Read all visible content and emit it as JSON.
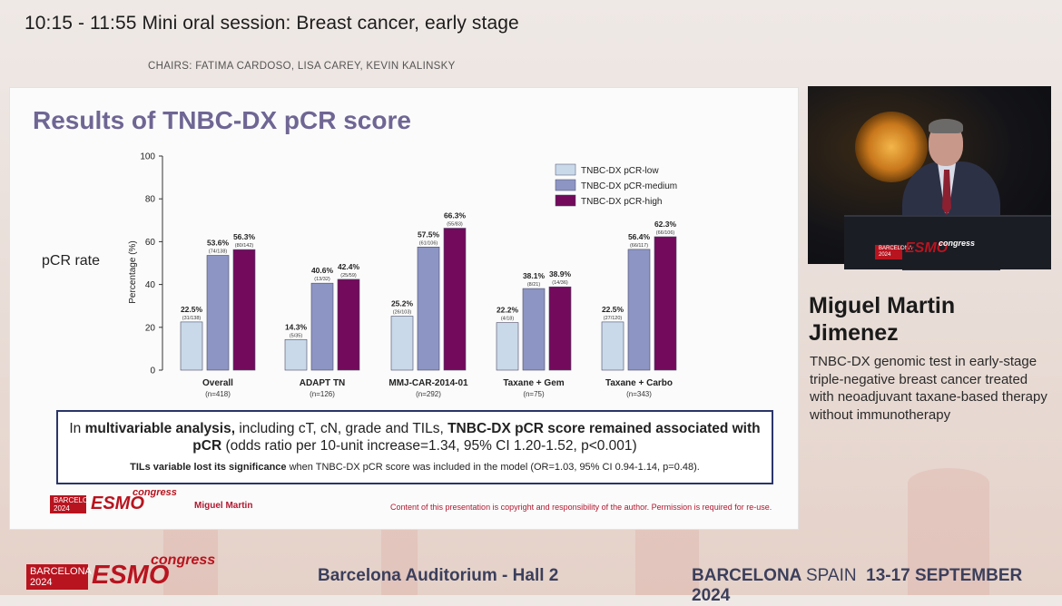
{
  "header": {
    "session_title": "10:15 - 11:55  Mini oral session: Breast cancer, early stage",
    "chairs": "CHAIRS: FATIMA CARDOSO, LISA CAREY, KEVIN KALINSKY"
  },
  "slide": {
    "title": "Results of TNBC-DX pCR score",
    "side_label": "pCR rate",
    "stat_box": {
      "line1_part1": "In ",
      "line1_bold1": "multivariable analysis,",
      "line1_part2": " including cT, cN, grade and TILs, ",
      "line1_bold2": "TNBC-DX pCR score remained associated with pCR",
      "line1_part3": " (odds ratio per 10-unit increase=1.34, 95% CI 1.20-1.52, p<0.001)",
      "line2_bold": "TILs variable lost its significance",
      "line2_rest": " when TNBC-DX pCR score was included in the model (OR=1.03, 95% CI 0.94-1.14, p=0.48)."
    },
    "logo_badge": "BARCELONA 2024",
    "logo_mark": "ESMO",
    "logo_congress": "congress",
    "author": "Miguel Martin",
    "copyright": "Content of this presentation is copyright and responsibility of the author. Permission is required for re-use."
  },
  "chart_data": {
    "type": "bar",
    "ylabel": "Percentage (%)",
    "ylim": [
      0,
      100
    ],
    "yticks": [
      "0",
      "20",
      "40",
      "60",
      "80",
      "100"
    ],
    "categories": [
      "Overall",
      "ADAPT TN",
      "MMJ-CAR-2014-01",
      "Taxane + Gem",
      "Taxane + Carbo"
    ],
    "category_n": [
      "(n=418)",
      "(n=126)",
      "(n=292)",
      "(n=75)",
      "(n=343)"
    ],
    "legend_position": "top-right",
    "series": [
      {
        "name": "TNBC-DX pCR-low",
        "color": "#c9d9ea",
        "values": [
          22.5,
          14.3,
          25.2,
          22.2,
          22.5
        ],
        "labels": [
          "22.5%",
          "14.3%",
          "25.2%",
          "22.2%",
          "22.5%"
        ],
        "fractions": [
          "(31/138)",
          "(5/35)",
          "(26/103)",
          "(4/18)",
          "(27/120)"
        ]
      },
      {
        "name": "TNBC-DX pCR-medium",
        "color": "#8d95c4",
        "values": [
          53.6,
          40.6,
          57.5,
          38.1,
          56.4
        ],
        "labels": [
          "53.6%",
          "40.6%",
          "57.5%",
          "38.1%",
          "56.4%"
        ],
        "fractions": [
          "(74/138)",
          "(13/32)",
          "(61/106)",
          "(8/21)",
          "(66/117)"
        ]
      },
      {
        "name": "TNBC-DX pCR-high",
        "color": "#730a5c",
        "values": [
          56.3,
          42.4,
          66.3,
          38.9,
          62.3
        ],
        "labels": [
          "56.3%",
          "42.4%",
          "66.3%",
          "38.9%",
          "62.3%"
        ],
        "fractions": [
          "(80/142)",
          "(25/59)",
          "(55/83)",
          "(14/36)",
          "(66/106)"
        ]
      }
    ]
  },
  "speaker": {
    "name_line1": "Miguel Martin",
    "name_line2": "Jimenez",
    "description": "TNBC-DX genomic test in early-stage triple-negative breast cancer treated with neoadjuvant taxane-based therapy without immunotherapy"
  },
  "video": {
    "lectern_badge": "BARCELONA 2024",
    "lectern_mark": "ESMO",
    "lectern_congress": "congress"
  },
  "footer": {
    "logo_badge": "BARCELONA 2024",
    "logo_mark": "ESMO",
    "logo_congress": "congress",
    "venue": "Barcelona Auditorium - Hall 2",
    "city": "BARCELONA",
    "country": "SPAIN",
    "dates": "13-17 SEPTEMBER 2024"
  },
  "colors": {
    "title_purple": "#6f6694",
    "brand_red": "#b8141f",
    "box_border": "#2a3569"
  }
}
